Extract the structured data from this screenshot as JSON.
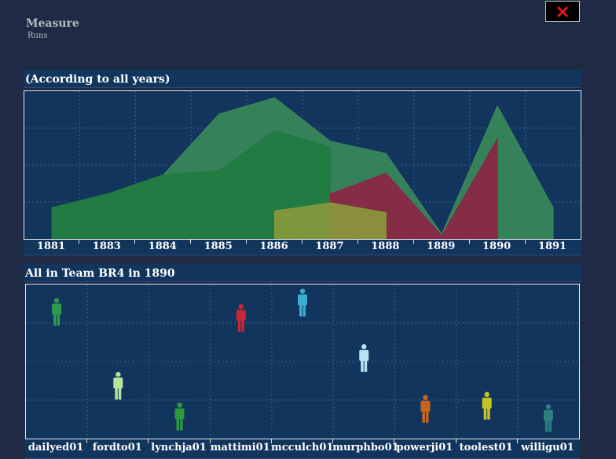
{
  "header": {
    "title": "Measure",
    "subtitle": "Runs"
  },
  "close": {
    "icon": "close-icon",
    "color": "#e3161c"
  },
  "area_panel": {
    "title": "(According to all years)"
  },
  "player_panel": {
    "title": "All in Team BR4 in 1890"
  },
  "chart_data": [
    {
      "type": "area",
      "title": "(According to all years)",
      "x": [
        "1881",
        "1883",
        "1884",
        "1885",
        "1886",
        "1887",
        "1888",
        "1889",
        "1890",
        "1891"
      ],
      "ylim": [
        0,
        180
      ],
      "grid": true,
      "series": [
        {
          "color": "#3a8a5a",
          "values": [
            38,
            55,
            78,
            152,
            172,
            119,
            104,
            6,
            162,
            38
          ]
        },
        {
          "color": "#1f7a3f",
          "values": [
            38,
            55,
            78,
            83,
            132,
            112,
            null,
            null,
            null,
            null
          ]
        },
        {
          "color": "#8e2245",
          "values": [
            null,
            null,
            null,
            null,
            null,
            55,
            80,
            4,
            122,
            null
          ]
        },
        {
          "color": "#8a9a3c",
          "values": [
            null,
            null,
            null,
            null,
            34,
            44,
            32,
            null,
            null,
            null
          ]
        }
      ]
    },
    {
      "type": "scatter",
      "title": "All in Team BR4 in 1890",
      "categories": [
        "dailyed01",
        "fordto01",
        "lynchja01",
        "mattimi01",
        "mcculch01",
        "murphbo01",
        "powerji01",
        "toolest01",
        "willigu01"
      ],
      "values": [
        82,
        34,
        14,
        78,
        88,
        52,
        19,
        21,
        13
      ],
      "ylim": [
        0,
        100
      ],
      "colors": [
        "#2e9a4e",
        "#b8e39a",
        "#2e9a3e",
        "#c72835",
        "#3aaed0",
        "#b7e4f0",
        "#c9651a",
        "#c9c424",
        "#2f7f80"
      ],
      "icon": "person-icon"
    }
  ]
}
